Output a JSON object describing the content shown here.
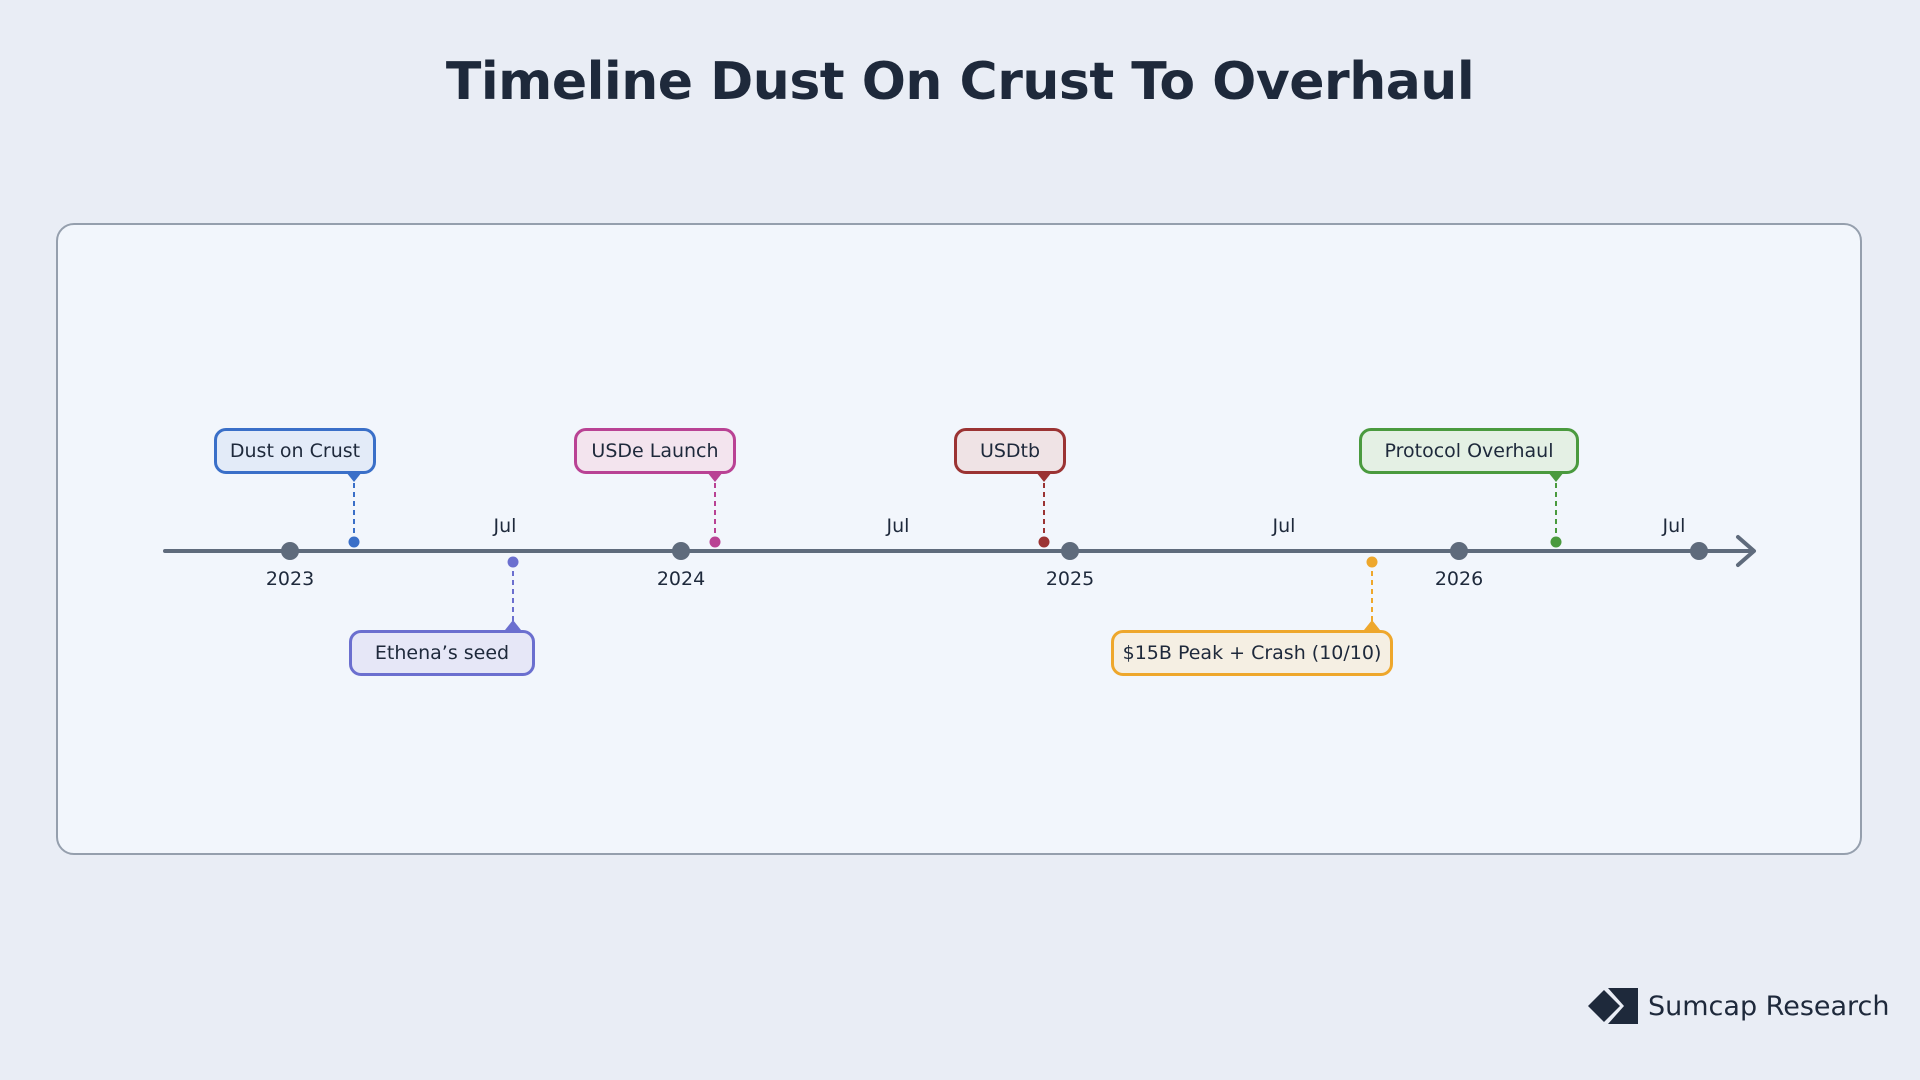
{
  "title": "Timeline Dust On Crust To Overhaul",
  "brand": {
    "name": "Sumcap Research",
    "logo_icon": "sumcap-logo-icon",
    "color": "#1e293b"
  },
  "timeline": {
    "axis_color": "#5f6b7c",
    "ticks": [
      {
        "label": "2023",
        "kind": "year"
      },
      {
        "label": "Jul",
        "kind": "mid"
      },
      {
        "label": "2024",
        "kind": "year"
      },
      {
        "label": "Jul",
        "kind": "mid"
      },
      {
        "label": "2025",
        "kind": "year"
      },
      {
        "label": "Jul",
        "kind": "mid"
      },
      {
        "label": "2026",
        "kind": "year"
      },
      {
        "label": "Jul",
        "kind": "mid"
      }
    ],
    "events": [
      {
        "label": "Dust on Crust",
        "side": "above",
        "color": "#3a6fc8",
        "fill": "#e3ebf8"
      },
      {
        "label": "Ethena’s seed",
        "side": "below",
        "color": "#6b6fcf",
        "fill": "#e6e7f7"
      },
      {
        "label": "USDe Launch",
        "side": "above",
        "color": "#b94294",
        "fill": "#f3e4ee"
      },
      {
        "label": "USDtb",
        "side": "above",
        "color": "#9b3333",
        "fill": "#efe3e5"
      },
      {
        "label": "$15B Peak + Crash (10/10)",
        "side": "below",
        "color": "#eea72c",
        "fill": "#f5efe3"
      },
      {
        "label": "Protocol Overhaul",
        "side": "above",
        "color": "#4a9a3e",
        "fill": "#e4f0e4"
      }
    ]
  }
}
